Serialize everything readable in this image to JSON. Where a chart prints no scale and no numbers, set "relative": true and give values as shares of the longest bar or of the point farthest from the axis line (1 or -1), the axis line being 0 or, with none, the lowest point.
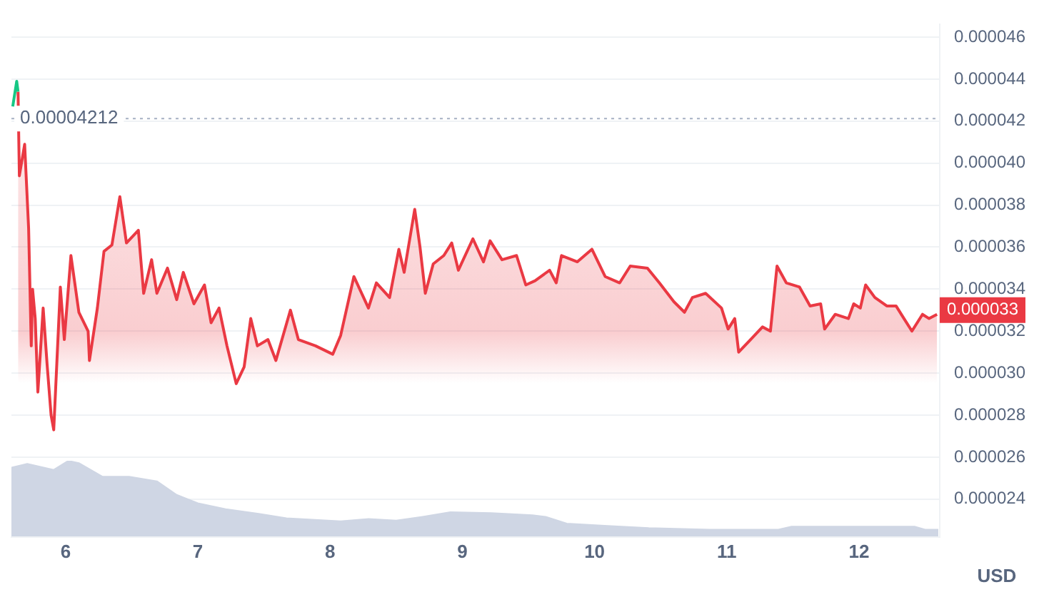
{
  "chart_data": [
    {
      "type": "area",
      "ylabel": "USD",
      "xlim": [
        5.59,
        12.61
      ],
      "xticks": [
        6,
        7,
        8,
        9,
        10,
        11,
        12
      ],
      "ylim": [
        2.22e-05,
        4.66e-05
      ],
      "yticks": [
        {
          "value": 2.4e-05,
          "label": "0.000024"
        },
        {
          "value": 2.6e-05,
          "label": "0.000026"
        },
        {
          "value": 2.8e-05,
          "label": "0.000028"
        },
        {
          "value": 3e-05,
          "label": "0.000030"
        },
        {
          "value": 3.2e-05,
          "label": "0.000032"
        },
        {
          "value": 3.4e-05,
          "label": "0.000034"
        },
        {
          "value": 3.6e-05,
          "label": "0.000036"
        },
        {
          "value": 3.8e-05,
          "label": "0.000038"
        },
        {
          "value": 4e-05,
          "label": "0.000040"
        },
        {
          "value": 4.2e-05,
          "label": "0.000042"
        },
        {
          "value": 4.4e-05,
          "label": "0.000044"
        },
        {
          "value": 4.6e-05,
          "label": "0.000046"
        }
      ],
      "grid": "y",
      "legend": false,
      "marker": "none",
      "ref_lines": [
        {
          "axis": "y",
          "value": 4.212e-05,
          "label": "0.00004212",
          "color": "#a6b0c3",
          "line_style": "dotted"
        }
      ],
      "annotations": [
        {
          "text": "0.000033",
          "x": 12.61,
          "y": 3.3e-05
        }
      ],
      "series": [
        {
          "type": "line",
          "color": "#16c784",
          "x": [
            5.6,
            5.63,
            5.64
          ],
          "values": [
            4.27e-05,
            4.39e-05,
            4.34e-05
          ]
        },
        {
          "color": "#ea3943",
          "x": [
            5.64,
            5.65,
            5.69,
            5.72,
            5.74,
            5.75,
            5.77,
            5.79,
            5.83,
            5.86,
            5.89,
            5.91,
            5.96,
            5.99,
            6.04,
            6.1,
            6.17,
            6.18,
            6.24,
            6.29,
            6.35,
            6.41,
            6.46,
            6.55,
            6.59,
            6.65,
            6.69,
            6.77,
            6.84,
            6.89,
            6.97,
            7.05,
            7.1,
            7.16,
            7.22,
            7.29,
            7.35,
            7.4,
            7.45,
            7.53,
            7.59,
            7.7,
            7.76,
            7.89,
            8.02,
            8.08,
            8.18,
            8.29,
            8.35,
            8.45,
            8.52,
            8.56,
            8.64,
            8.68,
            8.72,
            8.78,
            8.86,
            8.92,
            8.97,
            9.08,
            9.16,
            9.21,
            9.3,
            9.41,
            9.48,
            9.55,
            9.66,
            9.71,
            9.75,
            9.87,
            9.98,
            10.08,
            10.19,
            10.27,
            10.4,
            10.49,
            10.6,
            10.68,
            10.74,
            10.84,
            10.96,
            11.01,
            11.06,
            11.09,
            11.18,
            11.27,
            11.33,
            11.38,
            11.45,
            11.55,
            11.63,
            11.71,
            11.74,
            11.82,
            11.92,
            11.96,
            12.01,
            12.05,
            12.12,
            12.21,
            12.28,
            12.34,
            12.4,
            12.48,
            12.53,
            12.59
          ],
          "values": [
            4.34e-05,
            3.94e-05,
            4.09e-05,
            3.69e-05,
            3.13e-05,
            3.4e-05,
            3.26e-05,
            2.91e-05,
            3.31e-05,
            3.04e-05,
            2.8e-05,
            2.73e-05,
            3.41e-05,
            3.16e-05,
            3.56e-05,
            3.29e-05,
            3.2e-05,
            3.06e-05,
            3.31e-05,
            3.58e-05,
            3.61e-05,
            3.84e-05,
            3.62e-05,
            3.68e-05,
            3.38e-05,
            3.54e-05,
            3.38e-05,
            3.5e-05,
            3.35e-05,
            3.48e-05,
            3.33e-05,
            3.42e-05,
            3.24e-05,
            3.31e-05,
            3.13e-05,
            2.95e-05,
            3.03e-05,
            3.26e-05,
            3.13e-05,
            3.16e-05,
            3.06e-05,
            3.3e-05,
            3.16e-05,
            3.13e-05,
            3.09e-05,
            3.18e-05,
            3.46e-05,
            3.31e-05,
            3.43e-05,
            3.36e-05,
            3.59e-05,
            3.48e-05,
            3.78e-05,
            3.6e-05,
            3.38e-05,
            3.52e-05,
            3.56e-05,
            3.62e-05,
            3.49e-05,
            3.64e-05,
            3.53e-05,
            3.63e-05,
            3.54e-05,
            3.56e-05,
            3.42e-05,
            3.44e-05,
            3.49e-05,
            3.43e-05,
            3.56e-05,
            3.53e-05,
            3.59e-05,
            3.46e-05,
            3.43e-05,
            3.51e-05,
            3.5e-05,
            3.43e-05,
            3.34e-05,
            3.29e-05,
            3.36e-05,
            3.38e-05,
            3.31e-05,
            3.21e-05,
            3.26e-05,
            3.1e-05,
            3.16e-05,
            3.22e-05,
            3.2e-05,
            3.51e-05,
            3.43e-05,
            3.41e-05,
            3.32e-05,
            3.33e-05,
            3.21e-05,
            3.28e-05,
            3.26e-05,
            3.33e-05,
            3.31e-05,
            3.42e-05,
            3.36e-05,
            3.32e-05,
            3.32e-05,
            3.26e-05,
            3.2e-05,
            3.28e-05,
            3.26e-05,
            3.28e-05
          ]
        }
      ]
    },
    {
      "type": "area",
      "relative": true,
      "xlim": [
        5.59,
        12.61
      ],
      "marker": "none",
      "legend": false,
      "series": [
        {
          "color": "#cfd6e4",
          "x": [
            5.59,
            5.71,
            5.91,
            6.02,
            6.1,
            6.28,
            6.48,
            6.69,
            6.84,
            7.0,
            7.21,
            7.46,
            7.67,
            8.08,
            8.29,
            8.5,
            8.7,
            8.91,
            9.22,
            9.53,
            9.63,
            9.79,
            10.1,
            10.41,
            10.87,
            11.39,
            11.49,
            12.42,
            12.5,
            12.6
          ],
          "values": [
            0.91,
            0.96,
            0.88,
            1.0,
            0.97,
            0.79,
            0.79,
            0.73,
            0.55,
            0.44,
            0.36,
            0.3,
            0.24,
            0.2,
            0.23,
            0.21,
            0.26,
            0.32,
            0.31,
            0.28,
            0.26,
            0.17,
            0.14,
            0.11,
            0.09,
            0.09,
            0.13,
            0.13,
            0.09,
            0.09
          ]
        }
      ]
    }
  ]
}
